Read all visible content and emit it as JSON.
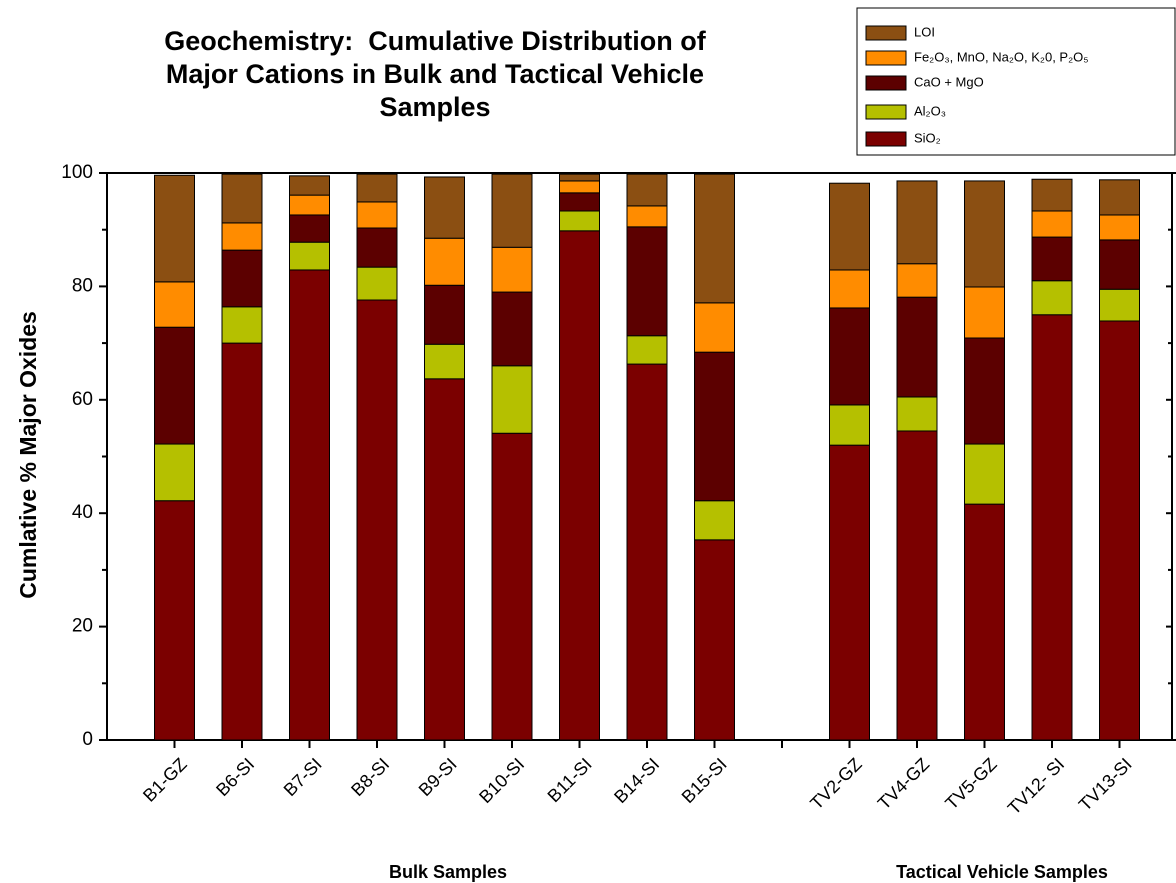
{
  "chart_data": {
    "type": "stacked-bar",
    "title": "Geochemistry:  Cumulative Distribution of Major Cations in Bulk and Tactical Vehicle Samples",
    "y_label": "Cumlative % Major Oxides",
    "categories": [
      "B1-GZ",
      "B6-SI",
      "B7-SI",
      "B8-SI",
      "B9-SI",
      "B10-SI",
      "B11-SI",
      "B14-SI",
      "B15-SI",
      null,
      "TV2-GZ",
      "TV4-GZ",
      "TV5-GZ",
      "TV12- SI",
      "TV13-SI"
    ],
    "group_labels": [
      "Bulk Samples",
      "Tactical Vehicle Samples"
    ],
    "series": [
      {
        "name": "SiO₂",
        "color": "#7b0000",
        "values": [
          42.2,
          70,
          82.9,
          77.6,
          63.7,
          54.1,
          89.8,
          66.3,
          35.3,
          null,
          52,
          54.5,
          41.6,
          75,
          73.9
        ]
      },
      {
        "name": "Al₂O₃",
        "color": "#b5c000",
        "values": [
          10,
          6.4,
          4.9,
          5.8,
          6.1,
          11.9,
          3.5,
          5,
          6.9,
          null,
          7.1,
          6,
          10.6,
          6,
          5.6
        ]
      },
      {
        "name": "CaO + MgO",
        "color": "#5c0000",
        "values": [
          20.6,
          10,
          4.8,
          6.9,
          10.4,
          13,
          3.2,
          19.2,
          26.2,
          null,
          17.1,
          17.6,
          18.7,
          7.7,
          8.7
        ]
      },
      {
        "name": "Fe₂O₃, MnO, Na₂O, K₂0, P₂O₅",
        "color": "#ff8c00",
        "values": [
          8,
          4.8,
          3.5,
          4.6,
          8.3,
          7.9,
          2.1,
          3.7,
          8.7,
          null,
          6.7,
          5.9,
          9,
          4.6,
          4.4
        ]
      },
      {
        "name": "LOI",
        "color": "#8b4f12",
        "values": [
          18.8,
          8.6,
          3.4,
          4.9,
          10.8,
          12.9,
          1.2,
          5.6,
          22.7,
          null,
          15.3,
          14.6,
          18.7,
          5.6,
          6.2
        ]
      }
    ],
    "ylim": [
      0,
      100
    ],
    "yticks": [
      0,
      20,
      40,
      60,
      80,
      100
    ],
    "minor_yticks": [
      10,
      30,
      50,
      70,
      90
    ],
    "legend": "top-right"
  }
}
